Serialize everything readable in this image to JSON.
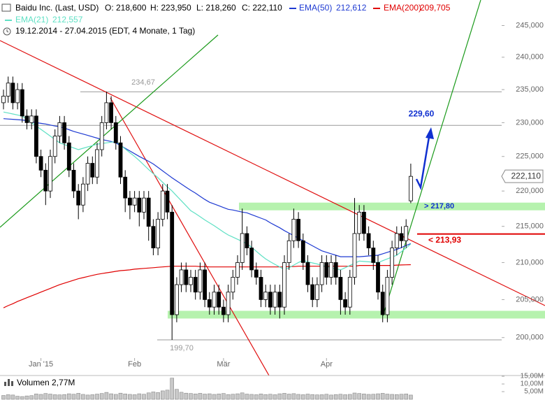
{
  "chart_data": {
    "type": "candlestick",
    "title": "Baidu Inc. (Last, USD)",
    "ohlc_labels": [
      "O: 218,600",
      "H: 223,950",
      "L: 218,260",
      "C: 222,110"
    ],
    "period": "19.12.2014 - 27.04.2015 (EDT, 4 Monate, 1 Tag)",
    "categories": [
      null,
      null,
      null,
      null,
      null,
      null,
      null,
      null,
      "Jan '15",
      null,
      null,
      null,
      null,
      null,
      null,
      null,
      null,
      null,
      null,
      null,
      null,
      null,
      null,
      null,
      null,
      null,
      null,
      null,
      "Feb",
      null,
      null,
      null,
      null,
      null,
      null,
      null,
      null,
      null,
      null,
      null,
      null,
      null,
      null,
      null,
      null,
      null,
      null,
      "Mär",
      null,
      null,
      null,
      null,
      null,
      null,
      null,
      null,
      null,
      null,
      null,
      null,
      null,
      null,
      null,
      null,
      null,
      null,
      null,
      null,
      null,
      "Apr",
      null,
      null,
      null,
      null,
      null,
      null,
      null,
      null,
      null,
      null,
      null,
      null,
      null,
      null,
      null,
      null,
      null,
      null
    ],
    "open": [
      233,
      234,
      236,
      233,
      235,
      231,
      230,
      231,
      225,
      223,
      220,
      225,
      228,
      230,
      227,
      223,
      220,
      218,
      221,
      224,
      222,
      226,
      230,
      233,
      230,
      227,
      222,
      219,
      218,
      219,
      217,
      219,
      215,
      212,
      216,
      220,
      217,
      203,
      207,
      209,
      207,
      208,
      206,
      209,
      205,
      204,
      206,
      204,
      203,
      206,
      208,
      210,
      214,
      212,
      209,
      208,
      205,
      206,
      204,
      206,
      204,
      210,
      213,
      216,
      213,
      210,
      207,
      205,
      207,
      210,
      208,
      210,
      208,
      205,
      204,
      208,
      214,
      217,
      214,
      212,
      210,
      206,
      203,
      208,
      212,
      214,
      213,
      218.6
    ],
    "high": [
      235,
      237,
      237,
      236,
      236,
      232,
      232,
      232,
      226,
      224,
      226,
      229,
      231,
      231,
      228,
      224,
      221,
      222,
      225,
      225,
      227,
      231,
      234.67,
      234,
      231,
      228,
      223,
      220,
      220,
      220,
      220,
      220,
      216,
      217,
      221,
      221,
      218,
      208,
      210,
      210,
      209,
      209,
      210,
      210,
      206,
      207,
      207,
      205,
      207,
      209,
      211,
      217.5,
      215,
      213,
      210,
      209,
      207,
      207,
      207,
      207,
      211,
      214,
      217.5,
      217,
      214,
      211,
      208,
      208,
      211,
      211,
      211,
      211,
      209,
      206,
      209,
      219,
      218,
      218,
      215,
      213,
      211,
      207,
      209,
      213,
      215,
      215,
      216,
      223.95
    ],
    "low": [
      232,
      233,
      232,
      232,
      230,
      229,
      229,
      224,
      222,
      218,
      219,
      224,
      227,
      226,
      222,
      219,
      216,
      217,
      220,
      221,
      221,
      225,
      229,
      229,
      226,
      221,
      217,
      216,
      217,
      215,
      216,
      213,
      211,
      211,
      215,
      216,
      199.7,
      202,
      206,
      206,
      206,
      205,
      205,
      204,
      203,
      203,
      203,
      202,
      202,
      205,
      207,
      209,
      211,
      208,
      207,
      204,
      204,
      203,
      203,
      202.5,
      203,
      209,
      212,
      212,
      209,
      206,
      204,
      204,
      206,
      207,
      207,
      207,
      203,
      203,
      203,
      207,
      213,
      213,
      211,
      209,
      205,
      202,
      202,
      207,
      211,
      212,
      212,
      218.26
    ],
    "close": [
      234,
      236,
      233,
      235,
      231,
      230,
      231,
      225,
      223,
      220,
      225,
      228,
      230,
      227,
      223,
      220,
      218,
      221,
      224,
      222,
      226,
      230,
      233,
      230,
      227,
      222,
      219,
      218,
      219,
      217,
      219,
      215,
      212,
      216,
      220,
      217,
      203,
      207,
      209,
      207,
      208,
      206,
      209,
      205,
      204,
      206,
      204,
      203,
      206,
      208,
      210,
      214,
      212,
      209,
      208,
      205,
      206,
      204,
      206,
      204,
      210,
      213,
      216,
      213,
      210,
      207,
      205,
      207,
      210,
      208,
      210,
      208,
      205,
      204,
      208,
      214,
      217,
      214,
      212,
      210,
      206,
      203,
      208,
      212,
      214,
      213,
      215,
      222.11
    ],
    "last_label": "222,110",
    "up_color": "#ffffff",
    "down_color": "#000000",
    "log_scale": true,
    "ylim": [
      195.3,
      249.1
    ],
    "yticks": [
      {
        "value": 200,
        "label": "200,000"
      },
      {
        "value": 205,
        "label": "205,000"
      },
      {
        "value": 210,
        "label": "210,000"
      },
      {
        "value": 215,
        "label": "215,000"
      },
      {
        "value": 220,
        "label": "220,000"
      },
      {
        "value": 225,
        "label": "225,000"
      },
      {
        "value": 230,
        "label": "230,000"
      },
      {
        "value": 235,
        "label": "235,000"
      },
      {
        "value": 240,
        "label": "240,000"
      },
      {
        "value": 245,
        "label": "245,000"
      }
    ],
    "series": [
      {
        "name": "EMA(50)",
        "legend_value": "212,612",
        "color": "#1e3ad2",
        "values": [
          230.6,
          230.55,
          230.5,
          230.45,
          230.4,
          230.3,
          230.15,
          230.0,
          229.9,
          229.8,
          229.65,
          229.5,
          229.4,
          229.2,
          228.95,
          228.7,
          228.5,
          228.3,
          228.1,
          227.9,
          227.7,
          227.5,
          227.35,
          227.2,
          227.0,
          226.6,
          226.2,
          225.8,
          225.4,
          225.0,
          224.65,
          224.3,
          223.9,
          223.4,
          222.9,
          222.4,
          221.9,
          221.45,
          221.0,
          220.55,
          220.1,
          219.7,
          219.25,
          218.8,
          218.4,
          218.15,
          217.9,
          217.65,
          217.4,
          217.3,
          217.15,
          217.0,
          216.9,
          216.65,
          216.4,
          216.15,
          215.9,
          215.5,
          215.15,
          214.8,
          214.4,
          214.05,
          213.7,
          213.35,
          213.0,
          212.65,
          212.3,
          211.95,
          211.6,
          211.4,
          211.2,
          211.0,
          210.8,
          210.8,
          210.8,
          210.8,
          210.8,
          210.85,
          210.9,
          210.95,
          211.0,
          211.2,
          211.4,
          211.6,
          211.8,
          212.05,
          212.35,
          212.612
        ]
      },
      {
        "name": "EMA(200)",
        "legend_value": "209,705",
        "color": "#e00000",
        "values": [
          203.9,
          204.2,
          204.45,
          204.75,
          205.0,
          205.25,
          205.5,
          205.75,
          206.0,
          206.25,
          206.5,
          206.75,
          207.0,
          207.2,
          207.4,
          207.6,
          207.8,
          207.95,
          208.1,
          208.25,
          208.4,
          208.5,
          208.6,
          208.7,
          208.8,
          208.9,
          208.95,
          209.0,
          209.1,
          209.15,
          209.2,
          209.25,
          209.3,
          209.35,
          209.4,
          209.45,
          209.5,
          209.5,
          209.5,
          209.5,
          209.5,
          209.5,
          209.45,
          209.45,
          209.4,
          209.4,
          209.4,
          209.4,
          209.4,
          209.4,
          209.4,
          209.4,
          209.4,
          209.4,
          209.4,
          209.4,
          209.4,
          209.4,
          209.4,
          209.4,
          209.4,
          209.45,
          209.45,
          209.5,
          209.5,
          209.5,
          209.5,
          209.5,
          209.5,
          209.5,
          209.5,
          209.5,
          209.5,
          209.5,
          209.5,
          209.5,
          209.6,
          209.6,
          209.6,
          209.6,
          209.6,
          209.6,
          209.6,
          209.6,
          209.65,
          209.67,
          209.69,
          209.705
        ]
      },
      {
        "name": "EMA(21)",
        "legend_value": "212,557",
        "color": "#5fe0c4",
        "values": [
          231.6,
          231.45,
          231.3,
          231.15,
          231.0,
          230.5,
          230.0,
          229.5,
          229.0,
          228.5,
          228.0,
          227.5,
          227.0,
          226.75,
          226.5,
          226.25,
          226.0,
          226.2,
          226.4,
          226.6,
          226.8,
          226.9,
          227.0,
          227.1,
          227.2,
          226.65,
          226.1,
          225.55,
          225.0,
          224.4,
          223.75,
          223.1,
          222.5,
          221.9,
          221.25,
          220.6,
          220.0,
          219.3,
          218.6,
          217.9,
          217.2,
          216.8,
          216.35,
          215.9,
          215.5,
          215.1,
          214.65,
          214.2,
          213.8,
          213.5,
          213.2,
          212.9,
          212.6,
          212.1,
          211.55,
          211.0,
          210.5,
          210.1,
          209.75,
          209.4,
          209.0,
          209.3,
          209.65,
          210.0,
          210.3,
          210.1,
          209.95,
          209.8,
          209.6,
          209.45,
          209.3,
          209.15,
          209.0,
          209.3,
          209.6,
          209.9,
          210.2,
          210.15,
          210.1,
          210.05,
          210.0,
          210.25,
          210.5,
          210.75,
          211.0,
          211.5,
          212.0,
          212.557
        ]
      }
    ],
    "levels": [
      {
        "value": 234.67,
        "label": "234,67"
      },
      {
        "value": 229.6,
        "label": "229,60"
      },
      {
        "value": 199.7,
        "label": "199,70"
      }
    ],
    "zones": [
      {
        "value": 217.8,
        "label": "> 217,80"
      },
      {
        "value": 203
      }
    ],
    "resistance": {
      "value": 213.93,
      "label": "< 213,93",
      "color": "#e00000"
    },
    "volume": {
      "label": "Volumen 2,77M",
      "color": "#c8c8c8",
      "values": [
        2.5,
        3,
        2.8,
        2,
        1.8,
        2.2,
        2.4,
        3.5,
        3.2,
        3.8,
        3.4,
        3,
        2.9,
        3.1,
        3.6,
        3.3,
        3.9,
        3.2,
        2.8,
        3,
        3.4,
        3.8,
        4.5,
        3.6,
        3.2,
        4,
        3.5,
        3.2,
        3,
        3.6,
        3.3,
        4.2,
        4.8,
        4.4,
        5.5,
        6,
        13.8,
        6.5,
        4.6,
        4,
        3.8,
        3.5,
        3.9,
        3.4,
        3.6,
        3.2,
        3.5,
        3.8,
        3.1,
        3.3,
        3.6,
        4.2,
        3.4,
        3.2,
        3,
        3.5,
        3.1,
        3.3,
        3,
        3.6,
        3.9,
        3.4,
        3.7,
        3.2,
        3,
        3.4,
        3.1,
        2.9,
        3,
        3.3,
        2.8,
        3.1,
        3.3,
        3,
        3.2,
        4.1,
        3.8,
        3.5,
        3.2,
        3.3,
        3.6,
        3.9,
        3.4,
        3.2,
        3.1,
        3.3,
        3.5,
        2.77
      ],
      "ylim": [
        0,
        15.5
      ],
      "yticks": [
        {
          "value": 5,
          "label": "5,00M"
        },
        {
          "value": 10,
          "label": "10,00M"
        },
        {
          "value": 15,
          "label": "15,00M"
        }
      ]
    }
  }
}
